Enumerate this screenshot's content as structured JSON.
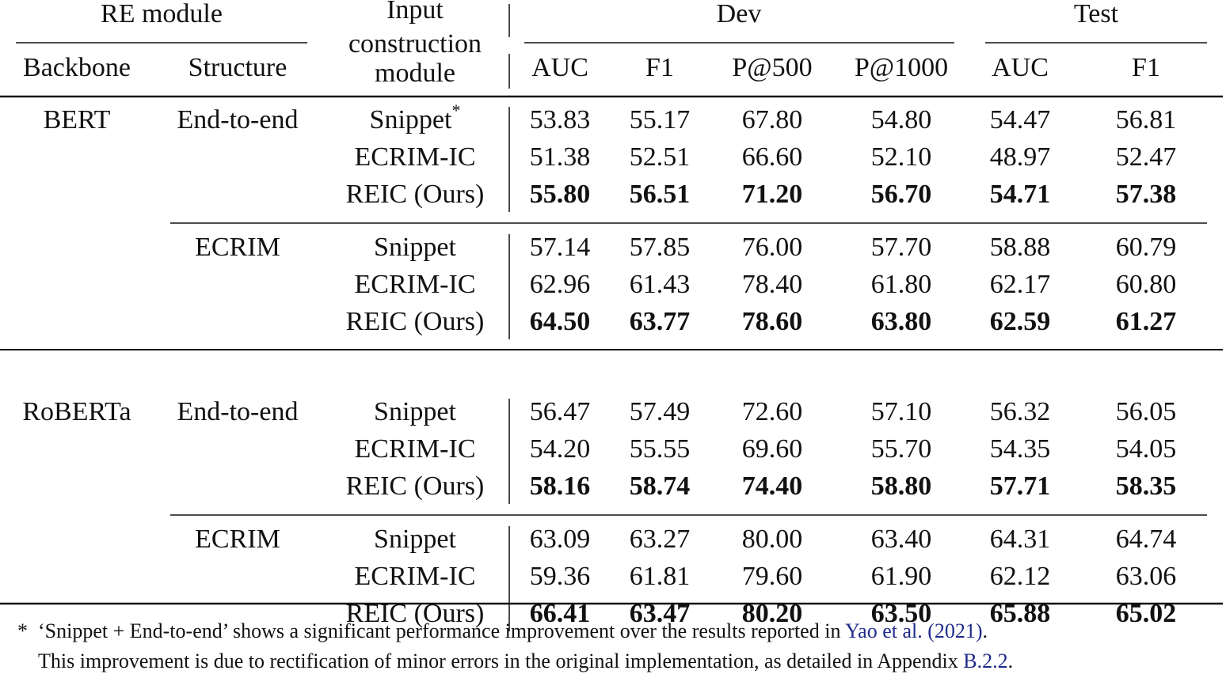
{
  "header": {
    "re_module": "RE module",
    "backbone": "Backbone",
    "structure": "Structure",
    "input": [
      "Input",
      "construction",
      "module"
    ],
    "dev": "Dev",
    "test": "Test",
    "metrics": [
      "AUC",
      "F1",
      "P@500",
      "P@1000",
      "AUC",
      "F1"
    ]
  },
  "groups": [
    {
      "backbone": "BERT",
      "blocks": [
        {
          "structure": "End-to-end",
          "rows": [
            {
              "input": "Snippet",
              "marker": "*",
              "values": [
                "53.83",
                "55.17",
                "67.80",
                "54.80",
                "54.47",
                "56.81"
              ]
            },
            {
              "input": "ECRIM-IC",
              "values": [
                "51.38",
                "52.51",
                "66.60",
                "52.10",
                "48.97",
                "52.47"
              ]
            },
            {
              "input": "REIC (Ours)",
              "bold": true,
              "values": [
                "55.80",
                "56.51",
                "71.20",
                "56.70",
                "54.71",
                "57.38"
              ]
            }
          ]
        },
        {
          "structure": "ECRIM",
          "rows": [
            {
              "input": "Snippet",
              "values": [
                "57.14",
                "57.85",
                "76.00",
                "57.70",
                "58.88",
                "60.79"
              ]
            },
            {
              "input": "ECRIM-IC",
              "values": [
                "62.96",
                "61.43",
                "78.40",
                "61.80",
                "62.17",
                "60.80"
              ]
            },
            {
              "input": "REIC (Ours)",
              "bold": true,
              "values": [
                "64.50",
                "63.77",
                "78.60",
                "63.80",
                "62.59",
                "61.27"
              ]
            }
          ]
        }
      ]
    },
    {
      "backbone": "RoBERTa",
      "blocks": [
        {
          "structure": "End-to-end",
          "rows": [
            {
              "input": "Snippet",
              "values": [
                "56.47",
                "57.49",
                "72.60",
                "57.10",
                "56.32",
                "56.05"
              ]
            },
            {
              "input": "ECRIM-IC",
              "values": [
                "54.20",
                "55.55",
                "69.60",
                "55.70",
                "54.35",
                "54.05"
              ]
            },
            {
              "input": "REIC (Ours)",
              "bold": true,
              "values": [
                "58.16",
                "58.74",
                "74.40",
                "58.80",
                "57.71",
                "58.35"
              ]
            }
          ]
        },
        {
          "structure": "ECRIM",
          "rows": [
            {
              "input": "Snippet",
              "values": [
                "63.09",
                "63.27",
                "80.00",
                "63.40",
                "64.31",
                "64.74"
              ]
            },
            {
              "input": "ECRIM-IC",
              "values": [
                "59.36",
                "61.81",
                "79.60",
                "61.90",
                "62.12",
                "63.06"
              ]
            },
            {
              "input": "REIC (Ours)",
              "bold": true,
              "values": [
                "66.41",
                "63.47",
                "80.20",
                "63.50",
                "65.88",
                "65.02"
              ]
            }
          ]
        }
      ]
    }
  ],
  "footnote": {
    "marker": "*",
    "line1": "‘Snippet + End-to-end’ shows a significant performance improvement over the results reported in ",
    "cite": "Yao et al. (2021)",
    "line1_end": ".",
    "line2": "This improvement is due to rectification of minor errors in the original implementation, as detailed in Appendix ",
    "appendix": "B.2.2",
    "line2_end": "."
  }
}
